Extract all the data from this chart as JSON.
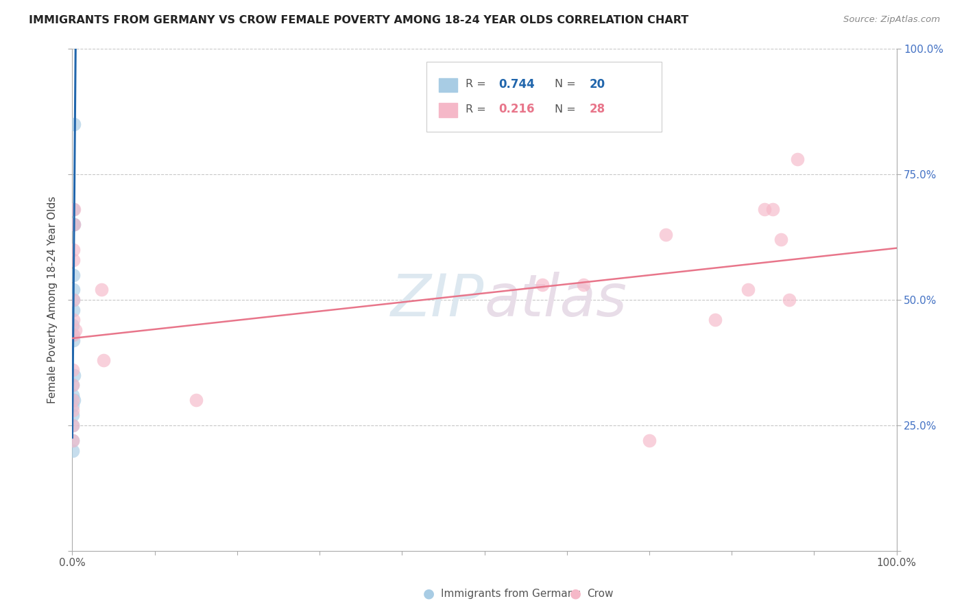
{
  "title": "IMMIGRANTS FROM GERMANY VS CROW FEMALE POVERTY AMONG 18-24 YEAR OLDS CORRELATION CHART",
  "source": "Source: ZipAtlas.com",
  "ylabel": "Female Poverty Among 18-24 Year Olds",
  "legend_blue_R": "0.744",
  "legend_blue_N": "20",
  "legend_pink_R": "0.216",
  "legend_pink_N": "28",
  "legend_label_blue": "Immigrants from Germany",
  "legend_label_pink": "Crow",
  "watermark_text": "ZIPatlas",
  "blue_color": "#a8cce4",
  "pink_color": "#f5b8c8",
  "blue_line_color": "#2166ac",
  "pink_line_color": "#e8758a",
  "right_tick_color": "#4472c4",
  "blue_scatter_x": [
    0.0002,
    0.0003,
    0.0003,
    0.0004,
    0.0005,
    0.0005,
    0.0006,
    0.0007,
    0.0008,
    0.0009,
    0.001,
    0.0012,
    0.0013,
    0.0014,
    0.0015,
    0.0017,
    0.0018,
    0.0019,
    0.002,
    0.0025
  ],
  "blue_scatter_y": [
    0.2,
    0.22,
    0.25,
    0.27,
    0.29,
    0.31,
    0.33,
    0.43,
    0.45,
    0.48,
    0.5,
    0.52,
    0.55,
    0.65,
    0.68,
    0.42,
    0.35,
    0.3,
    0.65,
    0.85
  ],
  "pink_scatter_x": [
    0.0002,
    0.0003,
    0.0005,
    0.0006,
    0.0007,
    0.0008,
    0.001,
    0.0012,
    0.0013,
    0.0015,
    0.0017,
    0.0018,
    0.0022,
    0.004,
    0.035,
    0.038,
    0.15,
    0.57,
    0.62,
    0.7,
    0.72,
    0.78,
    0.82,
    0.84,
    0.85,
    0.86,
    0.87,
    0.88
  ],
  "pink_scatter_y": [
    0.22,
    0.25,
    0.28,
    0.3,
    0.33,
    0.36,
    0.43,
    0.46,
    0.5,
    0.58,
    0.6,
    0.65,
    0.68,
    0.44,
    0.52,
    0.38,
    0.3,
    0.53,
    0.53,
    0.22,
    0.63,
    0.46,
    0.52,
    0.68,
    0.68,
    0.62,
    0.5,
    0.78
  ],
  "xlim": [
    0.0,
    1.0
  ],
  "ylim": [
    0.0,
    1.0
  ],
  "xtick_positions": [
    0.0,
    0.1,
    0.2,
    0.3,
    0.4,
    0.5,
    0.6,
    0.7,
    0.8,
    0.9,
    1.0
  ],
  "ytick_right": [
    0.25,
    0.5,
    0.75,
    1.0
  ],
  "ytick_right_labels": [
    "25.0%",
    "50.0%",
    "75.0%",
    "100.0%"
  ]
}
